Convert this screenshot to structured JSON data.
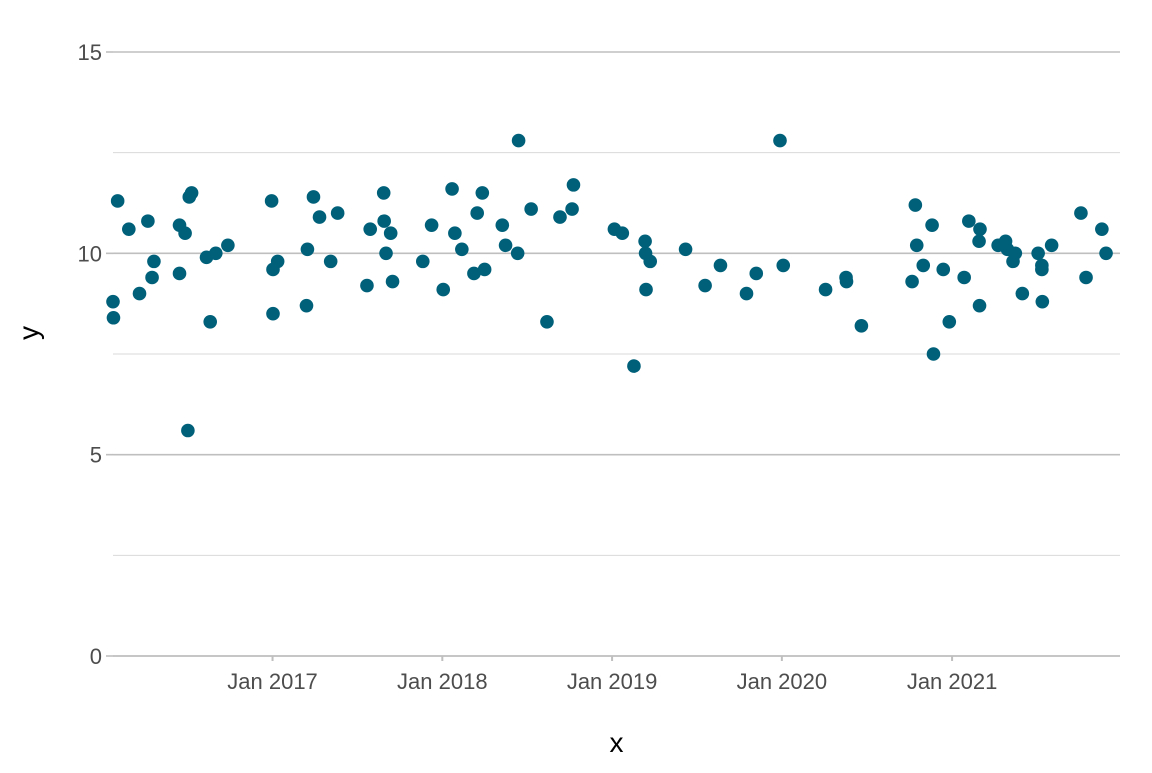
{
  "chart_data": {
    "type": "scatter",
    "title": "",
    "xlabel": "x",
    "ylabel": "y",
    "xlim": [
      "2016-01-24",
      "2021-12-28"
    ],
    "ylim": [
      0,
      15
    ],
    "x_ticks": [
      {
        "date": "2017-01-01",
        "label": "Jan 2017"
      },
      {
        "date": "2018-01-01",
        "label": "Jan 2018"
      },
      {
        "date": "2019-01-01",
        "label": "Jan 2019"
      },
      {
        "date": "2020-01-01",
        "label": "Jan 2020"
      },
      {
        "date": "2021-01-01",
        "label": "Jan 2021"
      }
    ],
    "y_major_ticks": [
      0,
      5,
      10,
      15
    ],
    "y_minor_gridlines": [
      2.5,
      7.5,
      12.5
    ],
    "grid": true,
    "legend": "none",
    "point_color": "#00607a",
    "points": [
      {
        "x": "2016-01-24",
        "y": 8.8
      },
      {
        "x": "2016-01-25",
        "y": 8.4
      },
      {
        "x": "2016-02-03",
        "y": 11.3
      },
      {
        "x": "2016-02-27",
        "y": 10.6
      },
      {
        "x": "2016-03-21",
        "y": 9.0
      },
      {
        "x": "2016-04-08",
        "y": 10.8
      },
      {
        "x": "2016-04-17",
        "y": 9.4
      },
      {
        "x": "2016-04-21",
        "y": 9.8
      },
      {
        "x": "2016-06-15",
        "y": 9.5
      },
      {
        "x": "2016-06-15",
        "y": 10.7
      },
      {
        "x": "2016-06-27",
        "y": 10.5
      },
      {
        "x": "2016-07-03",
        "y": 5.6
      },
      {
        "x": "2016-07-06",
        "y": 11.4
      },
      {
        "x": "2016-07-11",
        "y": 11.5
      },
      {
        "x": "2016-08-12",
        "y": 9.9
      },
      {
        "x": "2016-08-20",
        "y": 8.3
      },
      {
        "x": "2016-09-01",
        "y": 10.0
      },
      {
        "x": "2016-09-27",
        "y": 10.2
      },
      {
        "x": "2016-12-30",
        "y": 11.3
      },
      {
        "x": "2017-01-02",
        "y": 8.5
      },
      {
        "x": "2017-01-02",
        "y": 9.6
      },
      {
        "x": "2017-01-12",
        "y": 9.8
      },
      {
        "x": "2017-03-15",
        "y": 8.7
      },
      {
        "x": "2017-03-17",
        "y": 10.1
      },
      {
        "x": "2017-03-30",
        "y": 11.4
      },
      {
        "x": "2017-04-12",
        "y": 10.9
      },
      {
        "x": "2017-05-06",
        "y": 9.8
      },
      {
        "x": "2017-05-21",
        "y": 11.0
      },
      {
        "x": "2017-07-23",
        "y": 9.2
      },
      {
        "x": "2017-07-30",
        "y": 10.6
      },
      {
        "x": "2017-08-28",
        "y": 11.5
      },
      {
        "x": "2017-08-29",
        "y": 10.8
      },
      {
        "x": "2017-09-02",
        "y": 10.0
      },
      {
        "x": "2017-09-12",
        "y": 10.5
      },
      {
        "x": "2017-09-16",
        "y": 9.3
      },
      {
        "x": "2017-11-20",
        "y": 9.8
      },
      {
        "x": "2017-12-09",
        "y": 10.7
      },
      {
        "x": "2018-01-03",
        "y": 9.1
      },
      {
        "x": "2018-01-22",
        "y": 11.6
      },
      {
        "x": "2018-01-28",
        "y": 10.5
      },
      {
        "x": "2018-02-12",
        "y": 10.1
      },
      {
        "x": "2018-03-10",
        "y": 9.5
      },
      {
        "x": "2018-03-17",
        "y": 11.0
      },
      {
        "x": "2018-03-28",
        "y": 11.5
      },
      {
        "x": "2018-04-02",
        "y": 9.6
      },
      {
        "x": "2018-05-10",
        "y": 10.7
      },
      {
        "x": "2018-05-17",
        "y": 10.2
      },
      {
        "x": "2018-06-12",
        "y": 10.0
      },
      {
        "x": "2018-06-14",
        "y": 12.8
      },
      {
        "x": "2018-07-11",
        "y": 11.1
      },
      {
        "x": "2018-08-14",
        "y": 8.3
      },
      {
        "x": "2018-09-11",
        "y": 10.9
      },
      {
        "x": "2018-10-07",
        "y": 11.1
      },
      {
        "x": "2018-10-10",
        "y": 11.7
      },
      {
        "x": "2019-01-06",
        "y": 10.6
      },
      {
        "x": "2019-01-23",
        "y": 10.5
      },
      {
        "x": "2019-02-17",
        "y": 7.2
      },
      {
        "x": "2019-03-13",
        "y": 10.3
      },
      {
        "x": "2019-03-14",
        "y": 10.0
      },
      {
        "x": "2019-03-15",
        "y": 9.1
      },
      {
        "x": "2019-03-24",
        "y": 9.8
      },
      {
        "x": "2019-06-08",
        "y": 10.1
      },
      {
        "x": "2019-07-20",
        "y": 9.2
      },
      {
        "x": "2019-08-22",
        "y": 9.7
      },
      {
        "x": "2019-10-17",
        "y": 9.0
      },
      {
        "x": "2019-11-07",
        "y": 9.5
      },
      {
        "x": "2019-12-28",
        "y": 12.8
      },
      {
        "x": "2020-01-04",
        "y": 9.7
      },
      {
        "x": "2020-04-04",
        "y": 9.1
      },
      {
        "x": "2020-05-18",
        "y": 9.4
      },
      {
        "x": "2020-05-19",
        "y": 9.3
      },
      {
        "x": "2020-06-20",
        "y": 8.2
      },
      {
        "x": "2020-10-07",
        "y": 9.3
      },
      {
        "x": "2020-10-14",
        "y": 11.2
      },
      {
        "x": "2020-10-17",
        "y": 10.2
      },
      {
        "x": "2020-10-31",
        "y": 9.7
      },
      {
        "x": "2020-11-19",
        "y": 10.7
      },
      {
        "x": "2020-11-22",
        "y": 7.5
      },
      {
        "x": "2020-12-13",
        "y": 9.6
      },
      {
        "x": "2020-12-26",
        "y": 8.3
      },
      {
        "x": "2021-01-27",
        "y": 9.4
      },
      {
        "x": "2021-02-06",
        "y": 10.8
      },
      {
        "x": "2021-02-28",
        "y": 10.3
      },
      {
        "x": "2021-03-01",
        "y": 8.7
      },
      {
        "x": "2021-03-02",
        "y": 10.6
      },
      {
        "x": "2021-04-10",
        "y": 10.2
      },
      {
        "x": "2021-04-26",
        "y": 10.3
      },
      {
        "x": "2021-04-30",
        "y": 10.1
      },
      {
        "x": "2021-05-12",
        "y": 9.8
      },
      {
        "x": "2021-05-17",
        "y": 10.0
      },
      {
        "x": "2021-06-01",
        "y": 9.0
      },
      {
        "x": "2021-07-05",
        "y": 10.0
      },
      {
        "x": "2021-07-13",
        "y": 9.6
      },
      {
        "x": "2021-07-13",
        "y": 9.7
      },
      {
        "x": "2021-07-14",
        "y": 8.8
      },
      {
        "x": "2021-08-03",
        "y": 10.2
      },
      {
        "x": "2021-10-05",
        "y": 11.0
      },
      {
        "x": "2021-10-16",
        "y": 9.4
      },
      {
        "x": "2021-11-19",
        "y": 10.6
      },
      {
        "x": "2021-11-28",
        "y": 10.0
      }
    ]
  }
}
